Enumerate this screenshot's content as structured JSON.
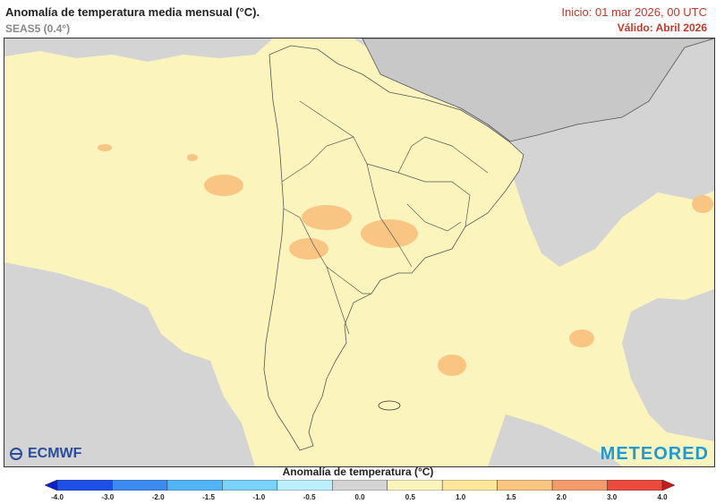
{
  "header": {
    "title": "Anomalía de temperatura media mensual (°C).",
    "subtitle": "SEAS5 (0.4°)",
    "init": "Inicio: 01 mar 2026, 00 UTC",
    "valid": "Válido: Abril 2026"
  },
  "logos": {
    "left": "ECMWF",
    "right": "METEORED"
  },
  "colorbar": {
    "title": "Anomalía de temperatura (°C)",
    "ticks": [
      "-4.0",
      "-3.0",
      "-2.0",
      "-1.5",
      "-1.0",
      "-0.5",
      "0.0",
      "0.5",
      "1.0",
      "1.5",
      "2.0",
      "3.0",
      "4.0"
    ],
    "colors": [
      "#0a22c8",
      "#1e50e8",
      "#3c8cf0",
      "#50b4f5",
      "#78d2fa",
      "#bceefc",
      "#d4d4d4",
      "#fbf5bd",
      "#fde79b",
      "#f9c582",
      "#f49b6b",
      "#ea4a3c",
      "#c31a1a"
    ]
  }
}
